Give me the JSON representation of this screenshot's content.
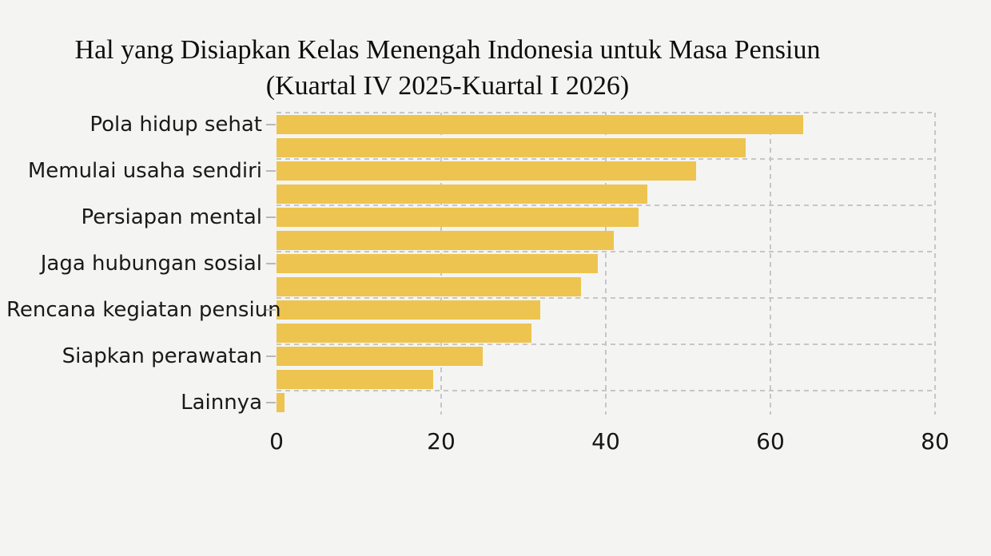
{
  "title": {
    "line1": "Hal yang Disiapkan Kelas Menengah Indonesia untuk Masa Pensiun",
    "line2": "(Kuartal IV 2025-Kuartal I 2026)"
  },
  "chart_data": {
    "type": "bar",
    "orientation": "horizontal",
    "title": "Hal yang Disiapkan Kelas Menengah Indonesia untuk Masa Pensiun (Kuartal IV 2025-Kuartal I 2026)",
    "categories": [
      "Pola hidup sehat",
      "Memulai usaha sendiri",
      "Persiapan mental",
      "Jaga hubungan sosial",
      "Rencana kegiatan pensiun",
      "Siapkan perawatan",
      "Lainnya"
    ],
    "values_by_category": [
      [
        64,
        57
      ],
      [
        51,
        45
      ],
      [
        44,
        41
      ],
      [
        39,
        37
      ],
      [
        32,
        31
      ],
      [
        25,
        19
      ],
      [
        1
      ]
    ],
    "bars": [
      {
        "category": "Pola hidup sehat",
        "value": 64,
        "labeled": true
      },
      {
        "category": "Pola hidup sehat",
        "value": 57,
        "labeled": false
      },
      {
        "category": "Memulai usaha sendiri",
        "value": 51,
        "labeled": true
      },
      {
        "category": "Memulai usaha sendiri",
        "value": 45,
        "labeled": false
      },
      {
        "category": "Persiapan mental",
        "value": 44,
        "labeled": true
      },
      {
        "category": "Persiapan mental",
        "value": 41,
        "labeled": false
      },
      {
        "category": "Jaga hubungan sosial",
        "value": 39,
        "labeled": true
      },
      {
        "category": "Jaga hubungan sosial",
        "value": 37,
        "labeled": false
      },
      {
        "category": "Rencana kegiatan pensiun",
        "value": 32,
        "labeled": true
      },
      {
        "category": "Rencana kegiatan pensiun",
        "value": 31,
        "labeled": false
      },
      {
        "category": "Siapkan perawatan",
        "value": 25,
        "labeled": true
      },
      {
        "category": "Siapkan perawatan",
        "value": 19,
        "labeled": false
      },
      {
        "category": "Lainnya",
        "value": 1,
        "labeled": true
      }
    ],
    "x_ticks": [
      0,
      20,
      40,
      60,
      80
    ],
    "x_tick_labels": [
      "0",
      "20",
      "40",
      "60",
      "80"
    ],
    "xlim": [
      0,
      80
    ],
    "ylabel": "",
    "xlabel": "",
    "grid": "dashed",
    "legend": "none"
  },
  "colors": {
    "bar": "#edc44f",
    "background": "#f4f4f2",
    "grid": "#c7c6c4",
    "tick_mark": "#b9b8b6",
    "text": "#161616"
  }
}
